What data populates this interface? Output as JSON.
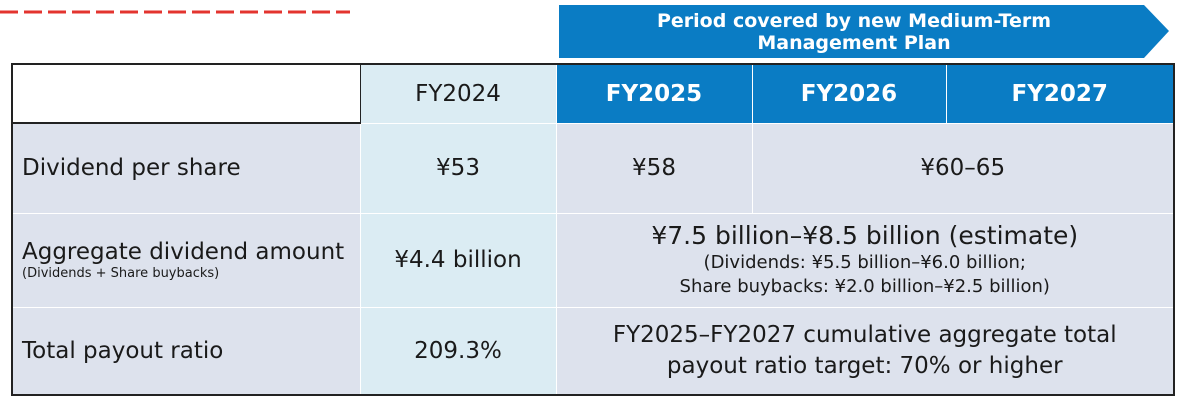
{
  "banner": {
    "line1": "Period covered by new Medium-Term",
    "line2": "Management Plan"
  },
  "colors": {
    "blue": "#0a7cc4",
    "light_blue": "#dbecf3",
    "gray_blue": "#dde2ed",
    "red": "#e3342f"
  },
  "table": {
    "headers": [
      "FY2024",
      "FY2025",
      "FY2026",
      "FY2027"
    ],
    "rows": {
      "dividend_per_share": {
        "label": "Dividend per share",
        "fy2024": "¥53",
        "fy2025": "¥58",
        "fy2026_2027": "¥60–65"
      },
      "aggregate": {
        "label": "Aggregate dividend amount",
        "sublabel": "(Dividends + Share buybacks)",
        "fy2024": "¥4.4 billion",
        "plan_main": "¥7.5 billion–¥8.5 billion (estimate)",
        "plan_sub1": "(Dividends: ¥5.5 billion–¥6.0 billion;",
        "plan_sub2": "Share buybacks: ¥2.0 billion–¥2.5 billion)"
      },
      "payout": {
        "label": "Total payout ratio",
        "fy2024": "209.3%",
        "plan_line1": "FY2025–FY2027 cumulative aggregate total",
        "plan_line2": "payout ratio target: 70% or higher"
      }
    }
  }
}
